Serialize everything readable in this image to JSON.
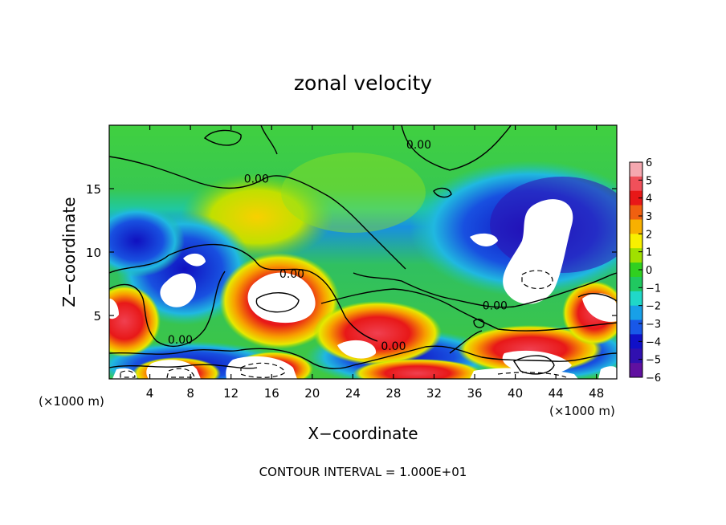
{
  "chart_data": {
    "type": "heatmap",
    "title": "zonal velocity",
    "xlabel": "X−coordinate",
    "ylabel": "Z−coordinate",
    "x_scale_note": "(×1000 m)",
    "y_scale_note": "(×1000 m)",
    "xlim": [
      0,
      50
    ],
    "ylim": [
      0,
      20
    ],
    "x_ticks": [
      4,
      8,
      12,
      16,
      20,
      24,
      28,
      32,
      36,
      40,
      44,
      48
    ],
    "y_ticks": [
      5,
      10,
      15
    ],
    "colorbar": {
      "min": -6,
      "max": 6,
      "ticks": [
        6,
        5,
        4,
        3,
        2,
        1,
        0,
        -1,
        -2,
        -3,
        -4,
        -5,
        -6
      ],
      "tick_labels": [
        "6",
        "5",
        "4",
        "3",
        "2",
        "1",
        "0",
        "−1",
        "−2",
        "−3",
        "−4",
        "−5",
        "−6"
      ],
      "colors": [
        "#f5a8b0",
        "#f0505a",
        "#e81818",
        "#f06010",
        "#f8b000",
        "#f8f000",
        "#a0e000",
        "#30d020",
        "#20c860",
        "#20d8c8",
        "#18a0e8",
        "#1858e8",
        "#1010c8",
        "#3010b0",
        "#6010a0"
      ]
    },
    "contour_labels": [
      {
        "text": "0.00",
        "x": 14.5,
        "z": 15.6
      },
      {
        "text": "0.00",
        "x": 30.5,
        "z": 18.3
      },
      {
        "text": "0.00",
        "x": 18.0,
        "z": 8.1
      },
      {
        "text": "0.00",
        "x": 7.0,
        "z": 2.9
      },
      {
        "text": "0.00",
        "x": 28.0,
        "z": 2.4
      },
      {
        "text": "0.00",
        "x": 38.0,
        "z": 5.6
      }
    ],
    "footer": "CONTOUR INTERVAL = 1.000E+01"
  }
}
